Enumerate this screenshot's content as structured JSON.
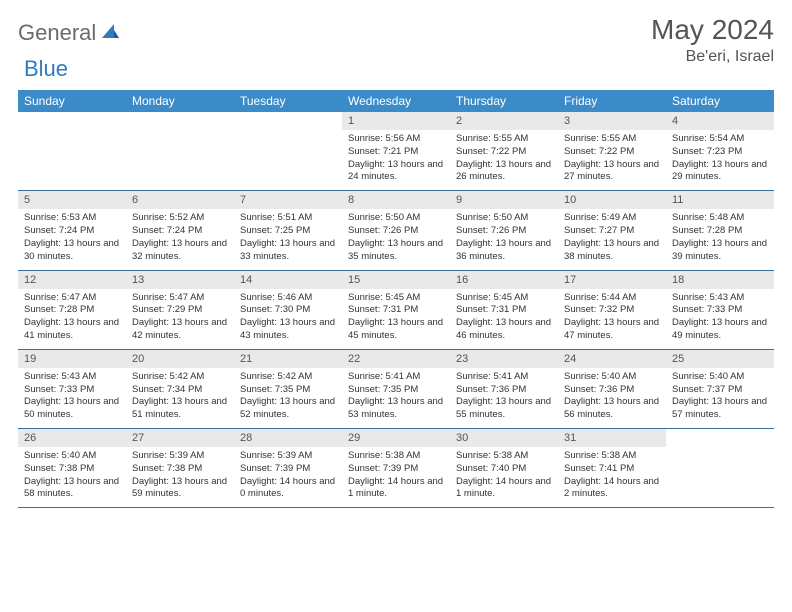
{
  "logo": {
    "part1": "General",
    "part2": "Blue"
  },
  "title": "May 2024",
  "location": "Be'eri, Israel",
  "header_bg": "#3b8bc9",
  "daynum_bg": "#e9e9e9",
  "border_color": "#3b6d99",
  "day_headers": [
    "Sunday",
    "Monday",
    "Tuesday",
    "Wednesday",
    "Thursday",
    "Friday",
    "Saturday"
  ],
  "weeks": [
    [
      null,
      null,
      null,
      {
        "n": "1",
        "sunrise": "5:56 AM",
        "sunset": "7:21 PM",
        "daylight": "13 hours and 24 minutes."
      },
      {
        "n": "2",
        "sunrise": "5:55 AM",
        "sunset": "7:22 PM",
        "daylight": "13 hours and 26 minutes."
      },
      {
        "n": "3",
        "sunrise": "5:55 AM",
        "sunset": "7:22 PM",
        "daylight": "13 hours and 27 minutes."
      },
      {
        "n": "4",
        "sunrise": "5:54 AM",
        "sunset": "7:23 PM",
        "daylight": "13 hours and 29 minutes."
      }
    ],
    [
      {
        "n": "5",
        "sunrise": "5:53 AM",
        "sunset": "7:24 PM",
        "daylight": "13 hours and 30 minutes."
      },
      {
        "n": "6",
        "sunrise": "5:52 AM",
        "sunset": "7:24 PM",
        "daylight": "13 hours and 32 minutes."
      },
      {
        "n": "7",
        "sunrise": "5:51 AM",
        "sunset": "7:25 PM",
        "daylight": "13 hours and 33 minutes."
      },
      {
        "n": "8",
        "sunrise": "5:50 AM",
        "sunset": "7:26 PM",
        "daylight": "13 hours and 35 minutes."
      },
      {
        "n": "9",
        "sunrise": "5:50 AM",
        "sunset": "7:26 PM",
        "daylight": "13 hours and 36 minutes."
      },
      {
        "n": "10",
        "sunrise": "5:49 AM",
        "sunset": "7:27 PM",
        "daylight": "13 hours and 38 minutes."
      },
      {
        "n": "11",
        "sunrise": "5:48 AM",
        "sunset": "7:28 PM",
        "daylight": "13 hours and 39 minutes."
      }
    ],
    [
      {
        "n": "12",
        "sunrise": "5:47 AM",
        "sunset": "7:28 PM",
        "daylight": "13 hours and 41 minutes."
      },
      {
        "n": "13",
        "sunrise": "5:47 AM",
        "sunset": "7:29 PM",
        "daylight": "13 hours and 42 minutes."
      },
      {
        "n": "14",
        "sunrise": "5:46 AM",
        "sunset": "7:30 PM",
        "daylight": "13 hours and 43 minutes."
      },
      {
        "n": "15",
        "sunrise": "5:45 AM",
        "sunset": "7:31 PM",
        "daylight": "13 hours and 45 minutes."
      },
      {
        "n": "16",
        "sunrise": "5:45 AM",
        "sunset": "7:31 PM",
        "daylight": "13 hours and 46 minutes."
      },
      {
        "n": "17",
        "sunrise": "5:44 AM",
        "sunset": "7:32 PM",
        "daylight": "13 hours and 47 minutes."
      },
      {
        "n": "18",
        "sunrise": "5:43 AM",
        "sunset": "7:33 PM",
        "daylight": "13 hours and 49 minutes."
      }
    ],
    [
      {
        "n": "19",
        "sunrise": "5:43 AM",
        "sunset": "7:33 PM",
        "daylight": "13 hours and 50 minutes."
      },
      {
        "n": "20",
        "sunrise": "5:42 AM",
        "sunset": "7:34 PM",
        "daylight": "13 hours and 51 minutes."
      },
      {
        "n": "21",
        "sunrise": "5:42 AM",
        "sunset": "7:35 PM",
        "daylight": "13 hours and 52 minutes."
      },
      {
        "n": "22",
        "sunrise": "5:41 AM",
        "sunset": "7:35 PM",
        "daylight": "13 hours and 53 minutes."
      },
      {
        "n": "23",
        "sunrise": "5:41 AM",
        "sunset": "7:36 PM",
        "daylight": "13 hours and 55 minutes."
      },
      {
        "n": "24",
        "sunrise": "5:40 AM",
        "sunset": "7:36 PM",
        "daylight": "13 hours and 56 minutes."
      },
      {
        "n": "25",
        "sunrise": "5:40 AM",
        "sunset": "7:37 PM",
        "daylight": "13 hours and 57 minutes."
      }
    ],
    [
      {
        "n": "26",
        "sunrise": "5:40 AM",
        "sunset": "7:38 PM",
        "daylight": "13 hours and 58 minutes."
      },
      {
        "n": "27",
        "sunrise": "5:39 AM",
        "sunset": "7:38 PM",
        "daylight": "13 hours and 59 minutes."
      },
      {
        "n": "28",
        "sunrise": "5:39 AM",
        "sunset": "7:39 PM",
        "daylight": "14 hours and 0 minutes."
      },
      {
        "n": "29",
        "sunrise": "5:38 AM",
        "sunset": "7:39 PM",
        "daylight": "14 hours and 1 minute."
      },
      {
        "n": "30",
        "sunrise": "5:38 AM",
        "sunset": "7:40 PM",
        "daylight": "14 hours and 1 minute."
      },
      {
        "n": "31",
        "sunrise": "5:38 AM",
        "sunset": "7:41 PM",
        "daylight": "14 hours and 2 minutes."
      },
      null
    ]
  ],
  "labels": {
    "sunrise": "Sunrise:",
    "sunset": "Sunset:",
    "daylight": "Daylight:"
  }
}
